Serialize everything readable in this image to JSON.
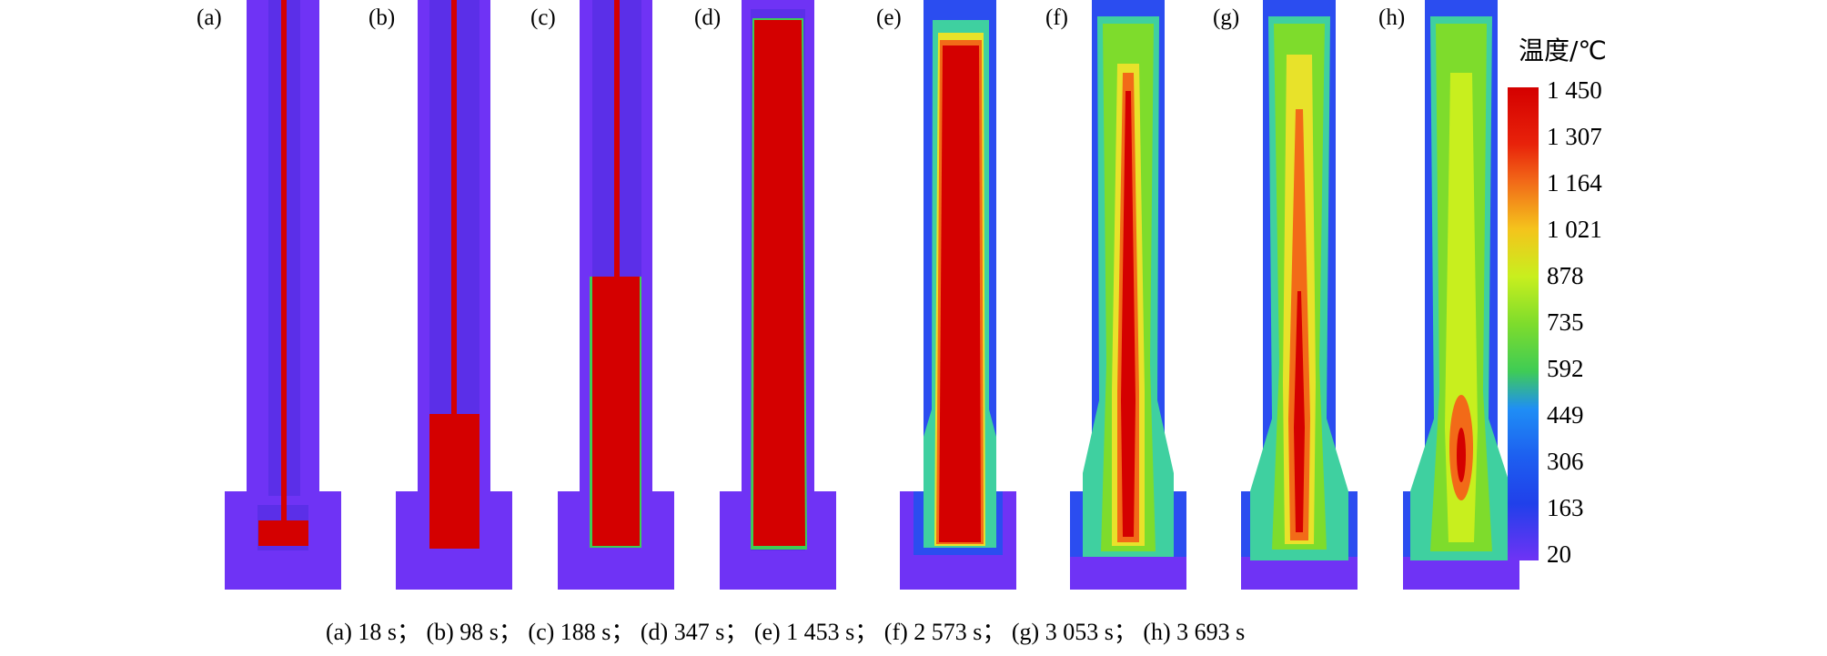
{
  "panels": [
    {
      "label": "(a)",
      "stage": "a"
    },
    {
      "label": "(b)",
      "stage": "b"
    },
    {
      "label": "(c)",
      "stage": "c"
    },
    {
      "label": "(d)",
      "stage": "d"
    },
    {
      "label": "(e)",
      "stage": "e"
    },
    {
      "label": "(f)",
      "stage": "f"
    },
    {
      "label": "(g)",
      "stage": "g"
    },
    {
      "label": "(h)",
      "stage": "h"
    }
  ],
  "colorbar": {
    "title": "温度/℃",
    "ticks": [
      "1 450",
      "1 307",
      "1 164",
      "1 021",
      "878",
      "735",
      "592",
      "449",
      "306",
      "163",
      "20"
    ],
    "colors": [
      "#d40000",
      "#f26a18",
      "#f4c41c",
      "#c8ef1e",
      "#7edc2c",
      "#3fcc55",
      "#1f8ef5",
      "#1d5ff0",
      "#2040ea",
      "#4c2ff0",
      "#6f33f5"
    ]
  },
  "caption": "(a) 18 s； (b) 98 s； (c) 188 s； (d) 347 s； (e) 1 453 s； (f) 2 573 s； (g) 3 053 s； (h) 3 693 s",
  "palette": {
    "cold_purple": "#6f33f5",
    "dark_purple": "#5b2fe8",
    "blue": "#2b4df0",
    "cyan": "#3fd0a0",
    "green": "#7edc2c",
    "yellow": "#c8ef1e",
    "orange": "#f26a18",
    "red": "#d40000"
  }
}
